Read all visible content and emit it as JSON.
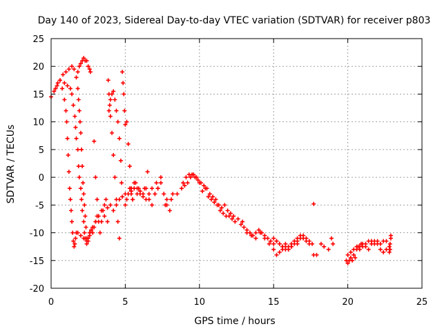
{
  "chart_data": {
    "type": "scatter",
    "title": "Day 140 of 2023, Sidereal Day-to-day VTEC variation (SDTVAR) for receiver p803",
    "xlabel": "GPS time / hours",
    "ylabel": "SDTVAR / TECUs",
    "xlim": [
      0,
      25
    ],
    "ylim": [
      -20,
      25
    ],
    "xticks": [
      0,
      5,
      10,
      15,
      20,
      25
    ],
    "yticks": [
      -20,
      -15,
      -10,
      -5,
      0,
      5,
      10,
      15,
      20,
      25
    ],
    "grid": true,
    "marker": "+",
    "color": "#ff0000",
    "series": [
      {
        "name": "SDTVAR",
        "x": [
          0.0,
          0.2,
          0.4,
          0.6,
          0.8,
          1.0,
          1.2,
          1.4,
          1.55,
          1.7,
          1.8,
          1.9,
          2.0,
          2.1,
          2.2,
          2.3,
          2.4,
          2.5,
          2.6,
          2.65
        ],
        "y": [
          14.5,
          15.5,
          16.5,
          17.5,
          18.5,
          19,
          19.5,
          20,
          19.5,
          18,
          19,
          20,
          20.5,
          21,
          21.5,
          21,
          21,
          20,
          19.5,
          19
        ]
      },
      {
        "name": "SDTVAR",
        "x": [
          0.3,
          0.45,
          0.6,
          0.75,
          0.9,
          1.0,
          1.05,
          1.1,
          1.15,
          1.2,
          1.25,
          1.3,
          1.35,
          1.4,
          1.45,
          1.5,
          1.55,
          1.6,
          1.65,
          1.7
        ],
        "y": [
          16,
          17,
          17.5,
          16,
          14,
          12,
          10,
          7,
          4,
          1,
          -2,
          -4,
          -6,
          -8,
          -10,
          -11.5,
          -12.5,
          -12,
          -11,
          -10
        ]
      },
      {
        "name": "SDTVAR",
        "x": [
          0.9,
          1.1,
          1.3,
          1.4,
          1.5,
          1.6,
          1.65,
          1.7,
          1.8,
          1.85,
          1.9,
          2.0,
          2.05,
          2.1,
          2.2,
          2.25,
          2.3,
          2.4,
          2.5,
          2.6
        ],
        "y": [
          17,
          16.5,
          16,
          15,
          13,
          11,
          9,
          7,
          5,
          2,
          0,
          -2,
          -4,
          -6,
          -8,
          -10,
          -11,
          -12,
          -11,
          -10
        ]
      },
      {
        "name": "SDTVAR",
        "x": [
          1.8,
          1.85,
          1.9,
          1.95,
          2.0,
          2.05,
          2.1,
          2.15,
          2.2,
          2.25,
          2.3,
          2.35,
          2.4,
          2.5,
          2.6,
          2.7,
          2.8,
          2.9,
          3.0,
          3.1
        ],
        "y": [
          16,
          14,
          12,
          10,
          8,
          5,
          2,
          -1,
          -3,
          -5,
          -7,
          -9,
          -11,
          -11.5,
          -10.5,
          -9.5,
          -10,
          -9,
          -8,
          -7
        ]
      },
      {
        "name": "SDTVAR",
        "x": [
          1.8,
          2.0,
          2.2,
          2.4,
          2.6,
          2.8,
          3.0,
          3.2,
          3.4,
          3.6,
          3.8,
          4.0,
          4.2,
          4.4,
          4.6,
          4.8,
          5.0,
          5.2,
          5.4,
          5.6
        ],
        "y": [
          -10,
          -10.5,
          -11,
          -11.5,
          -10,
          -9,
          -8,
          -7,
          -6,
          -7,
          -5.5,
          -5,
          -6,
          -5,
          -4,
          -3.5,
          -3,
          -3,
          -2.5,
          -2
        ]
      },
      {
        "name": "SDTVAR",
        "x": [
          2.9,
          3.0,
          3.1,
          3.2,
          3.3,
          3.4,
          3.5,
          3.6,
          3.7,
          3.8,
          3.85,
          3.9,
          3.95,
          4.0,
          4.1,
          4.2,
          4.3,
          4.4,
          4.5,
          4.6
        ],
        "y": [
          6.5,
          0,
          -4,
          -8,
          -10,
          -8,
          -6,
          -5,
          -4,
          -8,
          17.5,
          15,
          13,
          11,
          8,
          4,
          0,
          -4,
          -8,
          -11
        ]
      },
      {
        "name": "SDTVAR",
        "x": [
          3.9,
          4.0,
          4.1,
          4.2,
          4.3,
          4.4,
          4.5,
          4.6,
          4.7,
          4.75,
          4.8,
          4.85,
          4.9,
          4.95,
          5.0,
          5.1,
          5.2,
          5.3,
          5.4,
          5.5
        ],
        "y": [
          12,
          14,
          15,
          15.5,
          14,
          12,
          10,
          7,
          3,
          -1,
          19,
          17,
          15,
          12,
          9.5,
          10,
          6,
          2,
          -2,
          -4
        ]
      },
      {
        "name": "SDTVAR",
        "x": [
          5.0,
          5.1,
          5.2,
          5.3,
          5.4,
          5.5,
          5.6,
          5.7,
          5.8,
          5.9,
          6.0,
          6.2,
          6.4,
          6.6,
          6.8,
          7.0,
          7.2,
          7.4,
          7.6,
          7.8
        ],
        "y": [
          -5,
          -4,
          -3,
          -2,
          -3,
          -4,
          -2,
          -1,
          -3,
          -2,
          -2.5,
          -3,
          -4,
          -3,
          -2,
          -3,
          -2,
          -1,
          -3,
          -4
        ]
      },
      {
        "name": "SDTVAR",
        "x": [
          5.4,
          5.6,
          5.8,
          6.0,
          6.2,
          6.4,
          6.6,
          6.8,
          7.0,
          7.2,
          7.4,
          7.6,
          7.8,
          8.0,
          8.1,
          8.2,
          6.3,
          6.5,
          7.1,
          7.7
        ],
        "y": [
          -2,
          -1,
          -2,
          -3,
          -3.5,
          -2,
          -4,
          -5,
          -3,
          -2,
          0,
          -3,
          -5,
          -6,
          -4,
          -3,
          -2,
          1,
          -1,
          -5
        ]
      },
      {
        "name": "SDTVAR",
        "x": [
          8.5,
          8.8,
          9.0,
          9.2,
          9.4,
          9.6,
          9.8,
          10.0,
          10.2,
          10.4,
          10.6,
          10.8,
          11.0,
          11.2,
          11.4,
          11.6,
          11.8,
          12.0,
          12.2,
          12.4
        ],
        "y": [
          -3,
          -2,
          -1.5,
          -1,
          0,
          0.5,
          0,
          -1,
          -2.5,
          -2,
          -3.5,
          -4,
          -4.5,
          -5,
          -6,
          -6.5,
          -7,
          -7,
          -7.5,
          -8
        ]
      },
      {
        "name": "SDTVAR",
        "x": [
          8.9,
          9.1,
          9.3,
          9.5,
          9.7,
          9.9,
          10.1,
          10.3,
          10.5,
          10.7,
          10.9,
          11.1,
          11.3,
          11.5,
          11.7,
          11.9,
          12.1,
          12.3,
          12.6,
          12.9
        ],
        "y": [
          -1,
          0,
          0.5,
          0.5,
          0,
          -0.5,
          -1,
          -1.5,
          -2,
          -3,
          -3.5,
          -4,
          -5,
          -5.5,
          -5,
          -6,
          -6.5,
          -7,
          -7.5,
          -8
        ]
      },
      {
        "name": "SDTVAR",
        "x": [
          12.8,
          13.0,
          13.2,
          13.4,
          13.6,
          13.8,
          14.0,
          14.2,
          14.4,
          14.6,
          14.8,
          15.0,
          15.2,
          15.4,
          15.6,
          15.8,
          16.0,
          16.2,
          16.4,
          16.6
        ],
        "y": [
          -8.5,
          -9,
          -9.5,
          -10,
          -10.5,
          -10,
          -9.5,
          -10,
          -10.5,
          -11,
          -11.5,
          -12,
          -11.5,
          -12,
          -12.5,
          -12,
          -12.5,
          -12,
          -11.5,
          -12
        ]
      },
      {
        "name": "SDTVAR",
        "x": [
          13.2,
          13.5,
          13.8,
          14.1,
          14.4,
          14.7,
          15.0,
          15.2,
          15.4,
          15.6,
          15.8,
          16.0,
          16.2,
          16.4,
          16.6,
          16.8,
          17.0,
          17.2,
          17.4,
          17.6
        ],
        "y": [
          -10,
          -10.5,
          -11,
          -10,
          -11,
          -12,
          -13,
          -14,
          -13.5,
          -13,
          -12.5,
          -13,
          -12.5,
          -11.5,
          -11,
          -10.5,
          -10.5,
          -11,
          -11.5,
          -12
        ]
      },
      {
        "name": "SDTVAR",
        "x": [
          15.0,
          15.2,
          15.4,
          15.6,
          15.8,
          16.0,
          16.2,
          16.4,
          16.6,
          16.8,
          17.0,
          17.2,
          17.4,
          17.7,
          17.9,
          18.2,
          18.4,
          18.7,
          18.9,
          19.0
        ],
        "y": [
          -11,
          -11.5,
          -12,
          -12.5,
          -13,
          -13,
          -12.5,
          -12,
          -11.5,
          -11,
          -11,
          -11.5,
          -12,
          -14,
          -14,
          -12,
          -12.5,
          -13,
          -11,
          -12
        ]
      },
      {
        "name": "SDTVAR",
        "x": [
          17.7
        ],
        "y": [
          -4.8
        ]
      },
      {
        "name": "SDTVAR",
        "x": [
          19.9,
          20.0,
          20.1,
          20.2,
          20.3,
          20.4,
          20.5,
          20.6,
          20.7,
          20.8,
          20.9,
          21.0,
          21.2,
          21.4,
          21.6,
          21.8,
          22.0,
          22.2,
          22.4,
          22.6
        ],
        "y": [
          -15,
          -15.5,
          -15,
          -14.5,
          -15,
          -14,
          -14.5,
          -13,
          -12.5,
          -13,
          -12,
          -12.5,
          -12,
          -11.5,
          -11.5,
          -12,
          -11.5,
          -12,
          -11.5,
          -11.5
        ]
      },
      {
        "name": "SDTVAR",
        "x": [
          20.0,
          20.2,
          20.4,
          20.6,
          20.8,
          21.0,
          21.2,
          21.4,
          21.6,
          21.8,
          22.0,
          22.2,
          22.4,
          22.6,
          22.8,
          22.9,
          22.85,
          22.85,
          22.8,
          22.9
        ],
        "y": [
          -14,
          -13.5,
          -13,
          -12.5,
          -12.5,
          -12,
          -12.5,
          -13,
          -12,
          -11.5,
          -12,
          -13,
          -13.5,
          -13,
          -12.5,
          -11,
          -12,
          -13,
          -13.5,
          -10.5
        ]
      }
    ]
  }
}
